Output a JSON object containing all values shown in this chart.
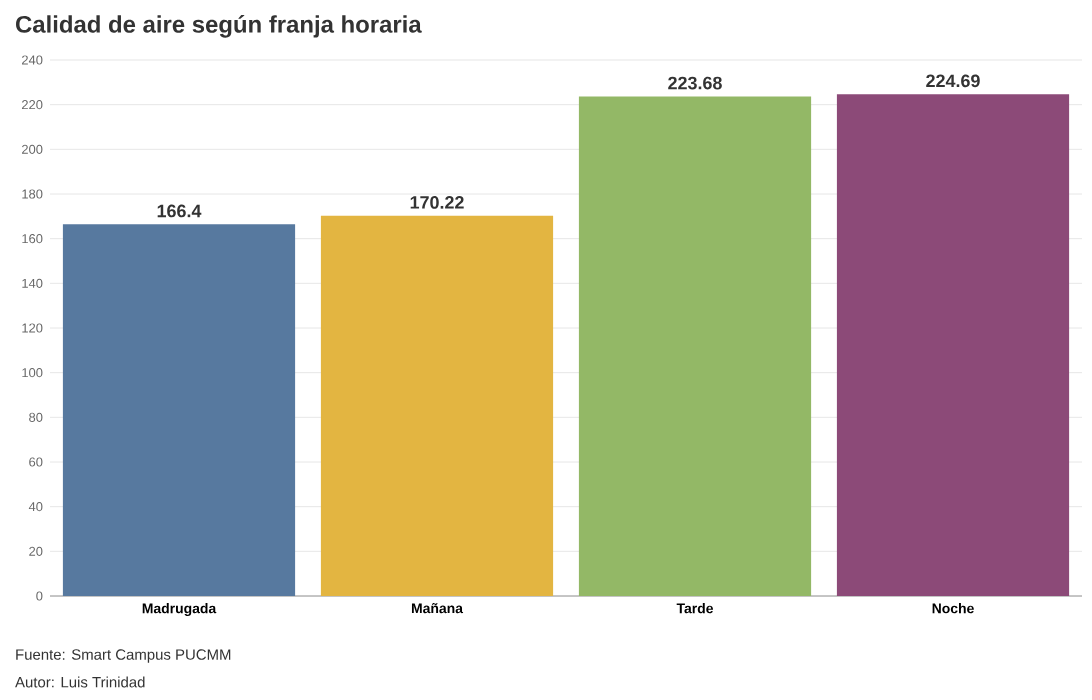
{
  "chart_data": {
    "type": "bar",
    "title": "Calidad de aire según franja horaria",
    "categories": [
      "Madrugada",
      "Mañana",
      "Tarde",
      "Noche"
    ],
    "values": [
      166.4,
      170.22,
      223.68,
      224.69
    ],
    "colors": [
      "#57799f",
      "#e3b541",
      "#93b866",
      "#8c4a78"
    ],
    "ylim": [
      0,
      240
    ],
    "yticks": [
      0,
      20,
      40,
      60,
      80,
      100,
      120,
      140,
      160,
      180,
      200,
      220,
      240
    ],
    "grid": "y",
    "data_labels": true,
    "annotations": [
      "Fuente: Smart Campus PUCMM",
      "Autor: Luis Trinidad"
    ]
  }
}
